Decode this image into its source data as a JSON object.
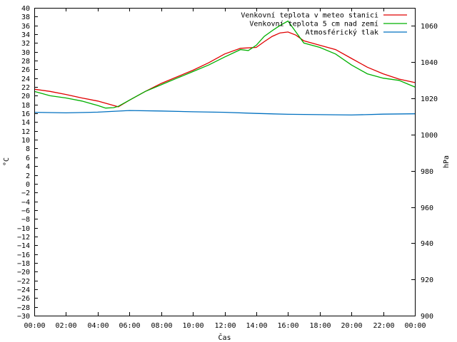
{
  "chart_data": {
    "type": "line",
    "title": "",
    "xlabel": "Čas",
    "ylabel_left": "°C",
    "ylabel_right": "hPa",
    "x_range_hours": [
      0,
      24
    ],
    "x_tick_labels": [
      "00:00",
      "02:00",
      "04:00",
      "06:00",
      "08:00",
      "10:00",
      "12:00",
      "14:00",
      "16:00",
      "18:00",
      "20:00",
      "22:00",
      "00:00"
    ],
    "ylim_left": [
      -30,
      40
    ],
    "y_left_ticks": [
      -30,
      -28,
      -26,
      -24,
      -22,
      -20,
      -18,
      -16,
      -14,
      -12,
      -10,
      -8,
      -6,
      -4,
      -2,
      0,
      2,
      4,
      6,
      8,
      10,
      12,
      14,
      16,
      18,
      20,
      22,
      24,
      26,
      28,
      30,
      32,
      34,
      36,
      38,
      40
    ],
    "ylim_right": [
      900,
      1070
    ],
    "y_right_ticks": [
      900,
      920,
      940,
      960,
      980,
      1000,
      1020,
      1040,
      1060
    ],
    "legend_position": "top-right",
    "series": [
      {
        "name": "Venkovní teplota v meteo stanici",
        "axis": "left",
        "color": "#e00000",
        "x": [
          0,
          1,
          2,
          3,
          4,
          5,
          5.3,
          6,
          7,
          8,
          9,
          10,
          11,
          12,
          13,
          14,
          14.5,
          15,
          15.5,
          16,
          16.5,
          17,
          18,
          19,
          20,
          21,
          22,
          23,
          24
        ],
        "values": [
          21.5,
          21.0,
          20.3,
          19.5,
          18.8,
          17.8,
          17.5,
          19.0,
          21.0,
          22.8,
          24.3,
          25.8,
          27.5,
          29.5,
          30.8,
          31.0,
          32.3,
          33.5,
          34.3,
          34.5,
          33.8,
          32.5,
          31.5,
          30.5,
          28.5,
          26.5,
          25.0,
          23.8,
          23.0
        ]
      },
      {
        "name": "Venkovní teplota 5 cm nad zemí",
        "axis": "left",
        "color": "#00b000",
        "x": [
          0,
          1,
          2,
          3,
          4,
          4.5,
          5,
          5.3,
          6,
          7,
          8,
          9,
          10,
          11,
          12,
          13,
          13.5,
          14,
          14.5,
          15,
          15.5,
          16,
          16.5,
          17,
          18,
          19,
          20,
          21,
          22,
          23,
          24
        ],
        "values": [
          21.0,
          20.0,
          19.5,
          18.8,
          17.8,
          17.2,
          17.3,
          17.6,
          19.0,
          21.0,
          22.5,
          24.0,
          25.5,
          27.0,
          28.8,
          30.5,
          30.3,
          31.5,
          33.5,
          34.8,
          36.0,
          37.0,
          34.5,
          32.0,
          31.0,
          29.5,
          27.0,
          25.0,
          24.0,
          23.5,
          22.0
        ]
      },
      {
        "name": "Atmosférický tlak",
        "axis": "right",
        "color": "#0070c0",
        "x": [
          0,
          2,
          4,
          6,
          8,
          10,
          12,
          14,
          16,
          18,
          20,
          22,
          24
        ],
        "values": [
          1012.3,
          1012.0,
          1012.4,
          1013.3,
          1013.0,
          1012.6,
          1012.3,
          1011.7,
          1011.2,
          1011.0,
          1010.8,
          1011.3,
          1011.5
        ]
      }
    ]
  }
}
